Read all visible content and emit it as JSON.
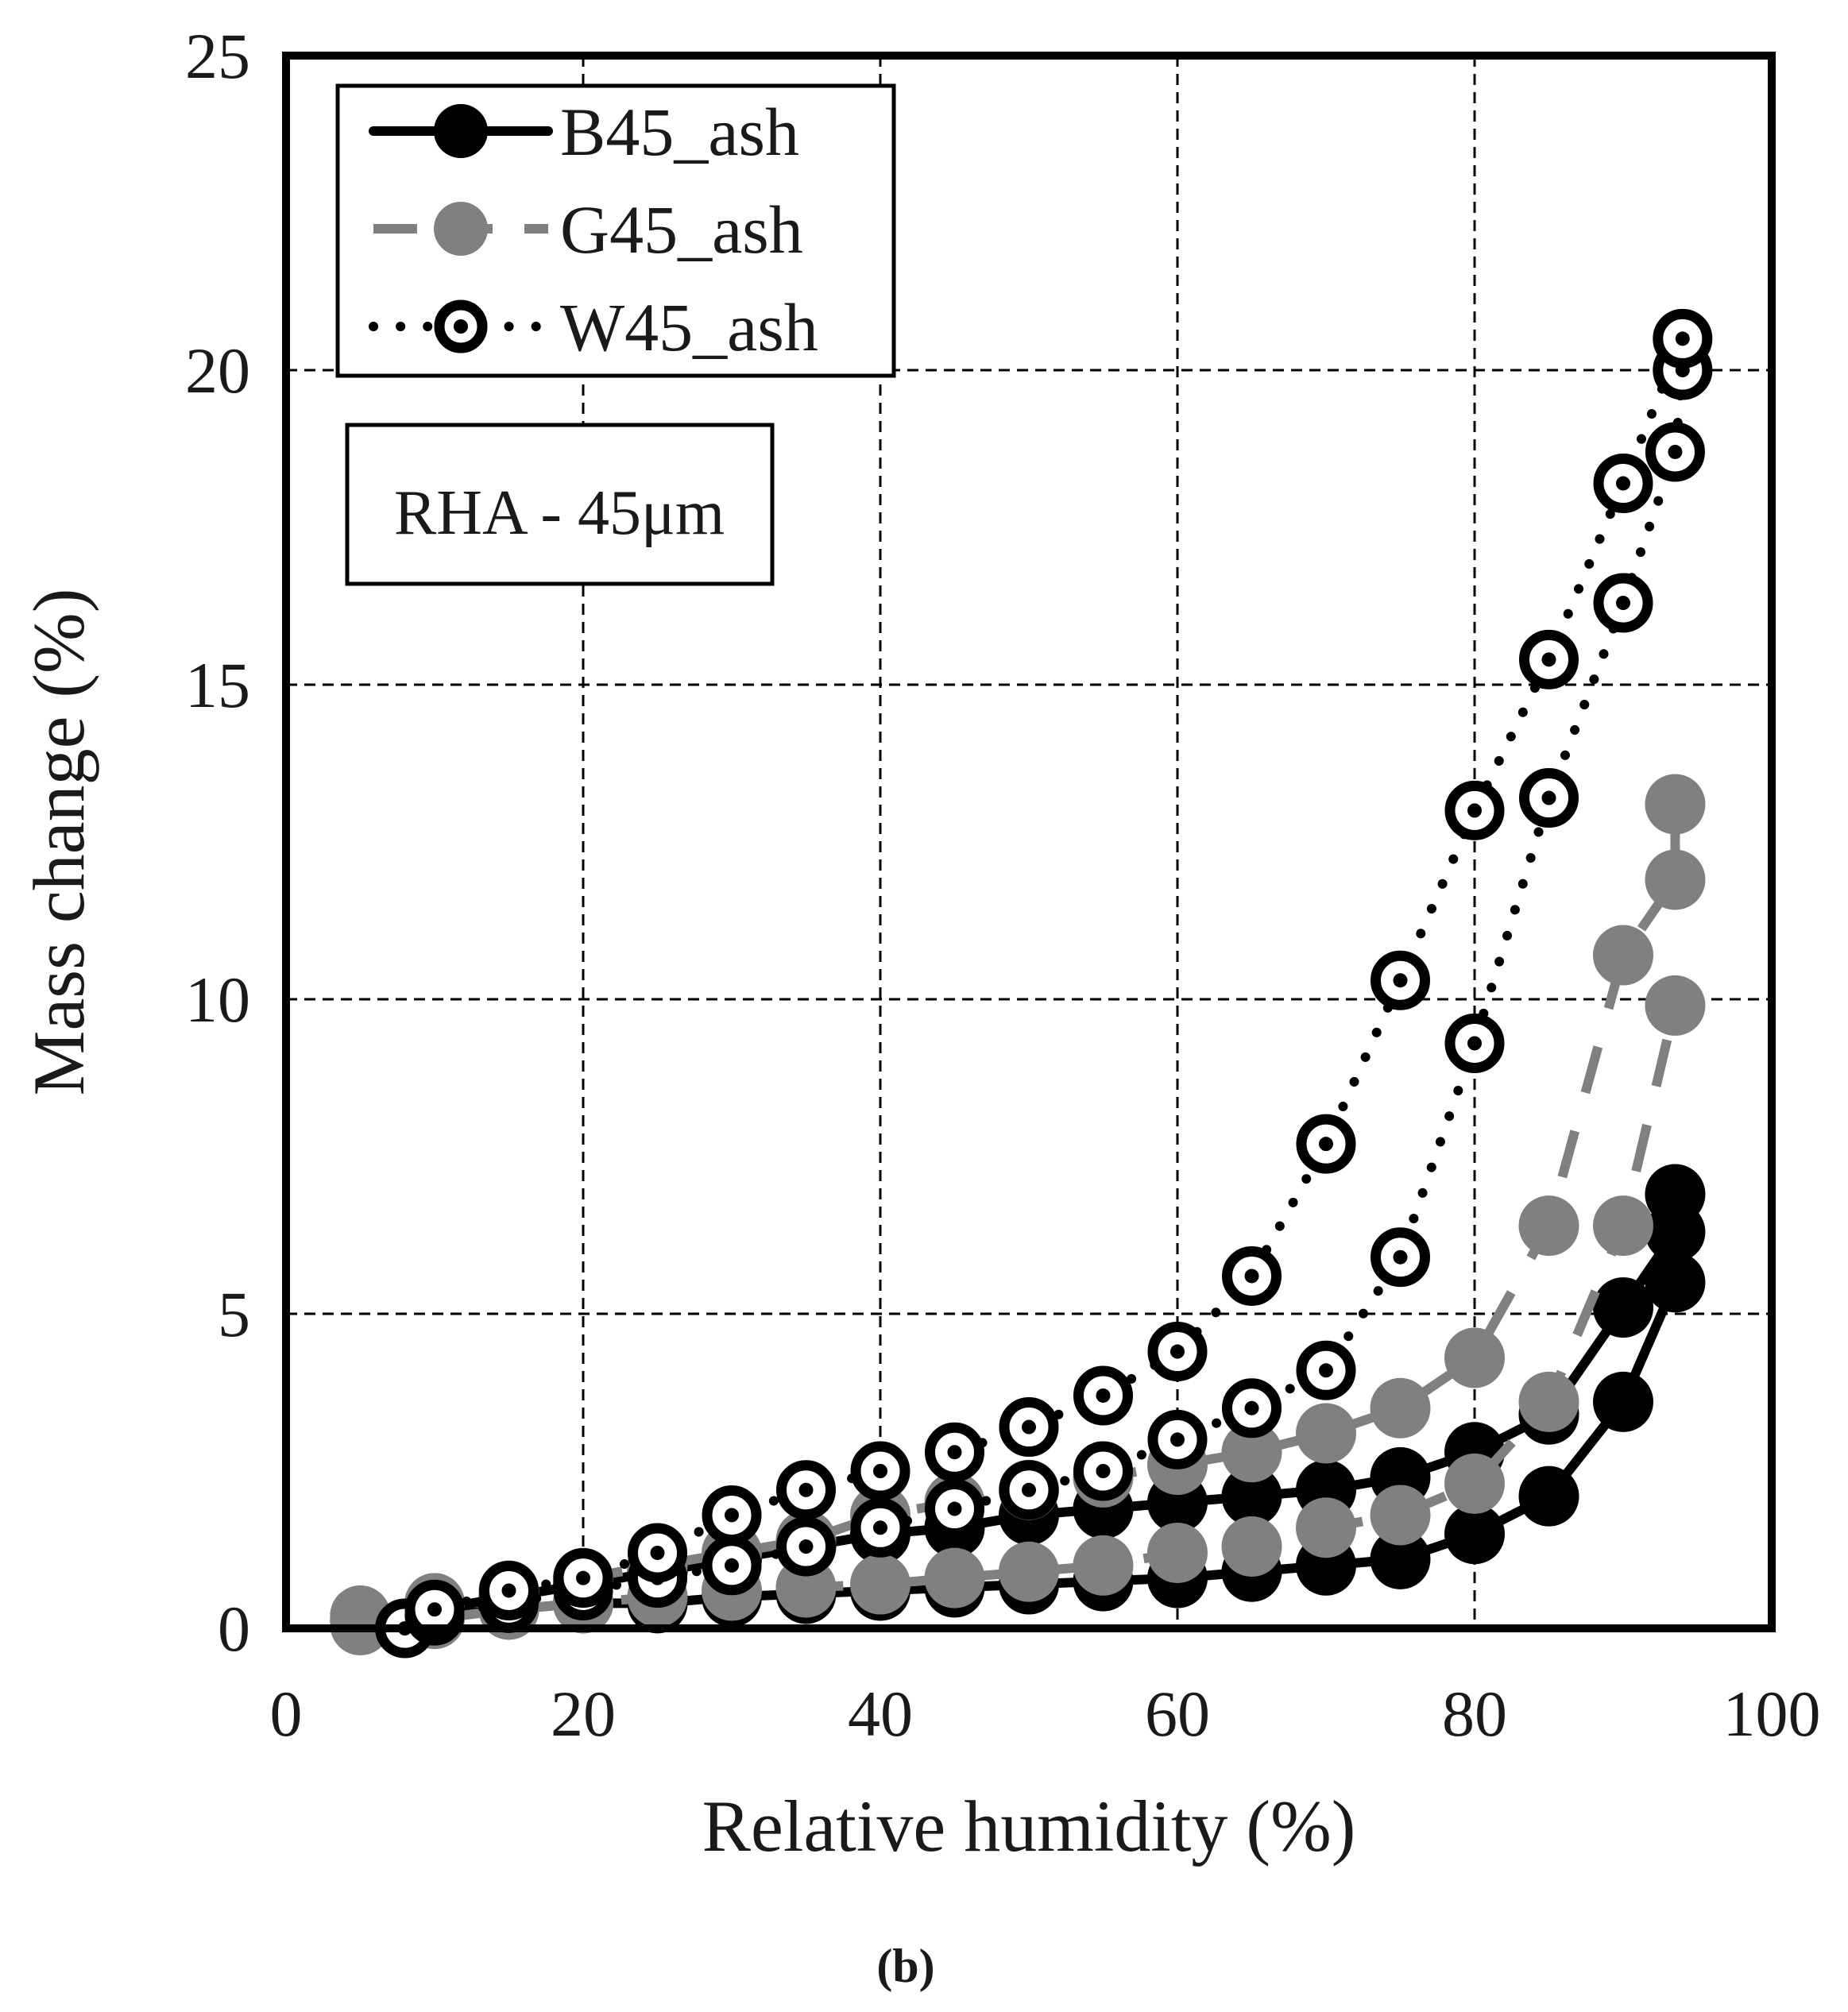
{
  "chart_data": {
    "type": "line",
    "xlabel": "Relative humidity  (%)",
    "ylabel": "Mass change  (%)",
    "xlim": [
      0,
      100
    ],
    "ylim": [
      0,
      25
    ],
    "x_ticks": [
      "0",
      "20",
      "40",
      "60",
      "80",
      "100"
    ],
    "y_ticks": [
      "0",
      "5",
      "10",
      "15",
      "20",
      "25"
    ],
    "grid": true,
    "legend_position": "top-left",
    "annotation": "RHA - 45μm",
    "caption": "(b)",
    "series": [
      {
        "name": "B45_ash",
        "color": "#000000",
        "marker": "filled-circle",
        "line_style": "solid",
        "adsorption": {
          "x": [
            5,
            10,
            15,
            20,
            25,
            30,
            35,
            40,
            45,
            50,
            55,
            60,
            65,
            70,
            75,
            80,
            85,
            90,
            93.5
          ],
          "y": [
            0.1,
            0.2,
            0.3,
            0.4,
            0.4,
            0.5,
            0.55,
            0.6,
            0.65,
            0.7,
            0.75,
            0.8,
            0.9,
            1.0,
            1.1,
            1.5,
            2.1,
            3.6,
            5.5
          ]
        },
        "desorption": {
          "x": [
            93.5,
            93.5,
            90,
            85,
            80,
            75,
            70,
            65,
            60,
            55,
            50,
            45,
            40,
            35,
            30,
            25,
            20,
            15,
            10,
            5
          ],
          "y": [
            6.9,
            6.3,
            5.1,
            3.4,
            2.8,
            2.4,
            2.2,
            2.1,
            2.0,
            1.9,
            1.8,
            1.6,
            1.5,
            1.3,
            1.1,
            0.9,
            0.7,
            0.5,
            0.3,
            0.2
          ]
        }
      },
      {
        "name": "G45_ash",
        "color": "#808080",
        "marker": "filled-circle",
        "line_style": "dashed",
        "adsorption": {
          "x": [
            5,
            10,
            15,
            20,
            25,
            30,
            35,
            40,
            45,
            50,
            55,
            60,
            65,
            70,
            75,
            80,
            85,
            90,
            93.5
          ],
          "y": [
            0.05,
            0.15,
            0.3,
            0.4,
            0.5,
            0.6,
            0.65,
            0.7,
            0.8,
            0.9,
            1.0,
            1.2,
            1.3,
            1.6,
            1.8,
            2.3,
            3.6,
            6.4,
            9.9
          ]
        },
        "desorption": {
          "x": [
            93.5,
            93.5,
            90,
            85,
            80,
            75,
            70,
            65,
            60,
            55,
            50,
            45,
            40,
            35,
            30,
            25,
            20,
            15,
            10,
            5
          ],
          "y": [
            13.1,
            11.9,
            10.7,
            6.4,
            4.3,
            3.5,
            3.1,
            2.8,
            2.6,
            2.4,
            2.2,
            2.0,
            1.8,
            1.4,
            1.2,
            1.0,
            0.8,
            0.6,
            0.4,
            0.2
          ]
        }
      },
      {
        "name": "W45_ash",
        "color": "#000000",
        "marker": "open-circle-dot",
        "line_style": "dotted",
        "adsorption": {
          "x": [
            8,
            10,
            15,
            20,
            25,
            30,
            35,
            40,
            45,
            50,
            55,
            60,
            65,
            70,
            75,
            80,
            85,
            90,
            93.5,
            94
          ],
          "y": [
            0.0,
            0.2,
            0.4,
            0.6,
            0.8,
            1.0,
            1.3,
            1.6,
            1.9,
            2.2,
            2.5,
            3.0,
            3.5,
            4.1,
            5.9,
            9.3,
            13.2,
            16.3,
            18.7,
            20.0
          ]
        },
        "desorption": {
          "x": [
            94,
            90,
            85,
            80,
            75,
            70,
            65,
            60,
            55,
            50,
            45,
            40,
            35,
            30,
            25,
            20,
            15,
            10
          ],
          "y": [
            20.5,
            18.2,
            15.4,
            13.0,
            10.3,
            7.7,
            5.6,
            4.4,
            3.7,
            3.2,
            2.8,
            2.5,
            2.2,
            1.8,
            1.2,
            0.8,
            0.6,
            0.3
          ]
        }
      }
    ]
  }
}
